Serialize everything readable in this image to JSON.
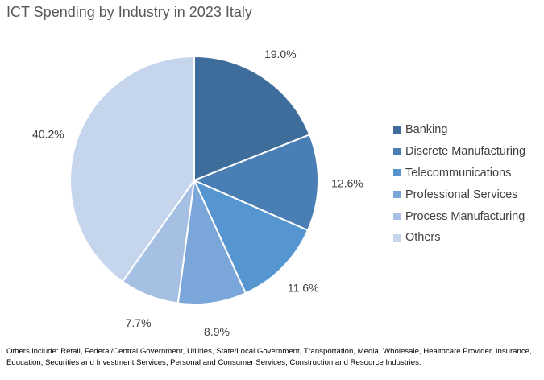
{
  "chart_data": {
    "type": "pie",
    "title": "ICT Spending by Industry in 2023 Italy",
    "categories": [
      "Banking",
      "Discrete Manufacturing",
      "Telecommunications",
      "Professional Services",
      "Process Manufacturing",
      "Others"
    ],
    "values": [
      19.0,
      12.6,
      11.6,
      8.9,
      7.7,
      40.2
    ],
    "value_labels": [
      "19.0%",
      "12.6%",
      "11.6%",
      "8.9%",
      "7.7%",
      "40.2%"
    ],
    "colors": [
      "#3e6d9c",
      "#4a7fb5",
      "#5596d0",
      "#7ba6d9",
      "#a6c0e4",
      "#c5d5eb"
    ],
    "legend_position": "right",
    "start_angle": "12 o'clock, clockwise"
  },
  "footnote": "Others include: Retail, Federal/Central Government, Utilities, State/Local Government, Transportation, Media, Wholesale, Healthcare Provider, Insurance, Education, Securities and Investment Services, Personal and Consumer Services, Construction and Resource Industries."
}
